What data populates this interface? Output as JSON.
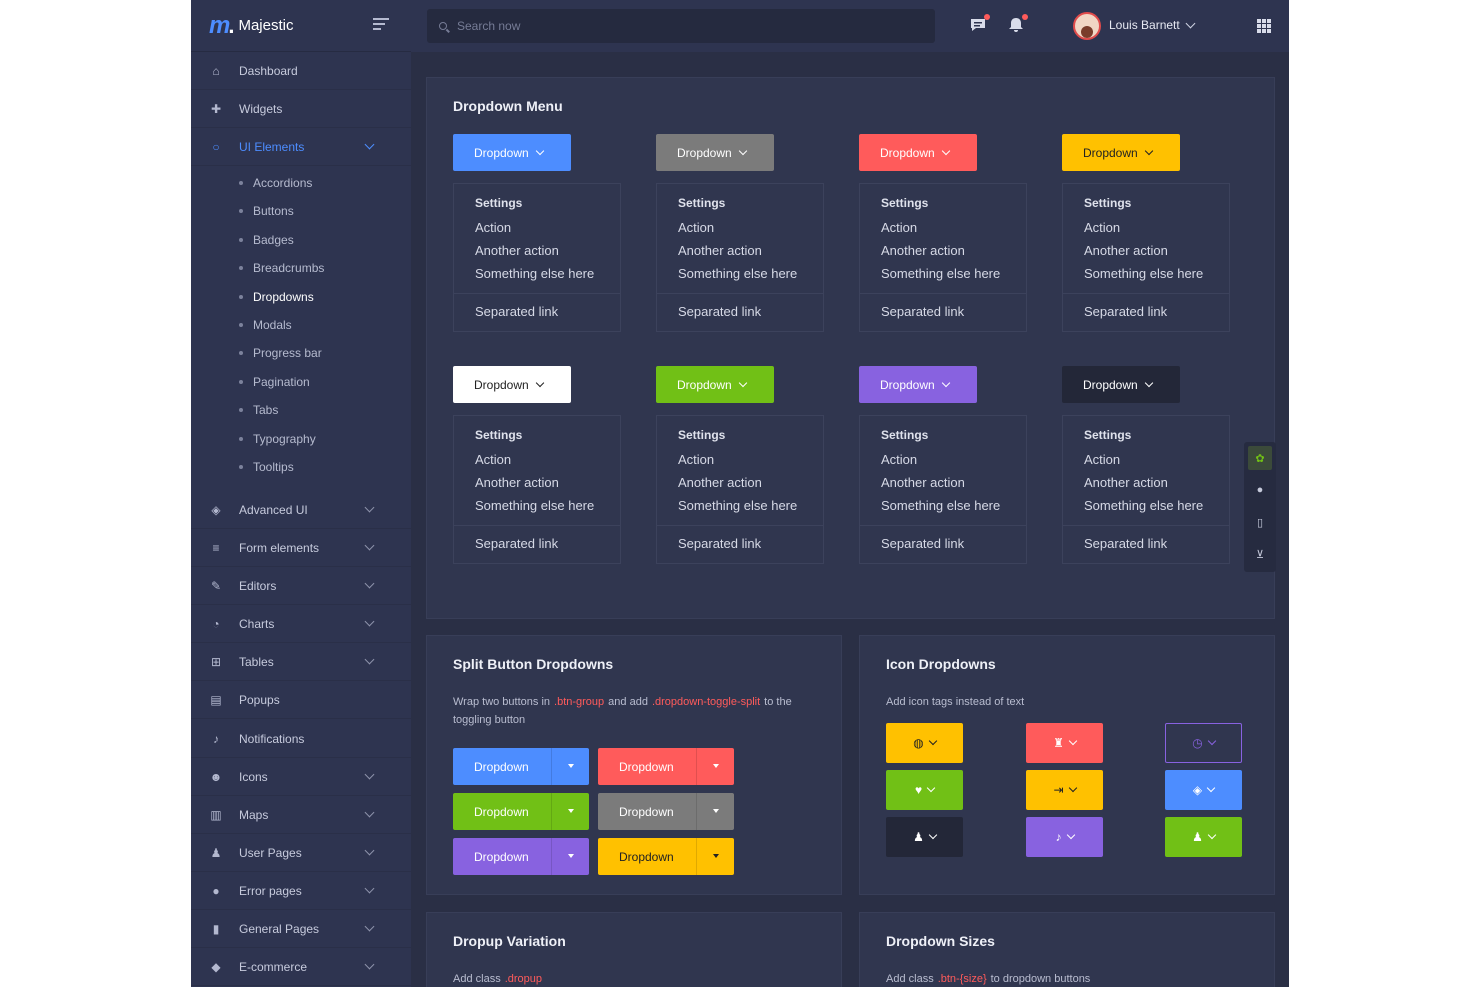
{
  "brand": {
    "logo_mark": "m",
    "logo_dot": ".",
    "name": "Majestic"
  },
  "search": {
    "placeholder": "Search now"
  },
  "user": {
    "name": "Louis Barnett"
  },
  "colors": {
    "primary": "#4d8dff",
    "secondary": "#7b7b7b",
    "danger": "#ff5b5b",
    "warning": "#ffc100",
    "light": "#ffffff",
    "success": "#71c016",
    "info": "#8862e0",
    "dark": "#232738"
  },
  "sidebar": {
    "items": [
      {
        "label": "Dashboard",
        "icon": "home-icon",
        "glyph": "⌂"
      },
      {
        "label": "Widgets",
        "icon": "puzzle-icon",
        "glyph": "✚"
      },
      {
        "label": "UI Elements",
        "icon": "circle-icon",
        "glyph": "○",
        "active": true
      },
      {
        "label": "Advanced UI",
        "icon": "layers-icon",
        "glyph": "◈"
      },
      {
        "label": "Form elements",
        "icon": "list-icon",
        "glyph": "≡"
      },
      {
        "label": "Editors",
        "icon": "edit-icon",
        "glyph": "✎"
      },
      {
        "label": "Charts",
        "icon": "pie-chart-icon",
        "glyph": "◔"
      },
      {
        "label": "Tables",
        "icon": "table-icon",
        "glyph": "⊞"
      },
      {
        "label": "Popups",
        "icon": "popup-icon",
        "glyph": "▤"
      },
      {
        "label": "Notifications",
        "icon": "bell-icon",
        "glyph": "♪"
      },
      {
        "label": "Icons",
        "icon": "smile-icon",
        "glyph": "☻"
      },
      {
        "label": "Maps",
        "icon": "map-icon",
        "glyph": "▥"
      },
      {
        "label": "User Pages",
        "icon": "user-icon",
        "glyph": "♟"
      },
      {
        "label": "Error pages",
        "icon": "alert-icon",
        "glyph": "●"
      },
      {
        "label": "General Pages",
        "icon": "file-icon",
        "glyph": "▮"
      },
      {
        "label": "E-commerce",
        "icon": "basket-icon",
        "glyph": "◆"
      }
    ],
    "sub_items": [
      "Accordions",
      "Buttons",
      "Badges",
      "Breadcrumbs",
      "Dropdowns",
      "Modals",
      "Progress bar",
      "Pagination",
      "Tabs",
      "Typography",
      "Tooltips"
    ]
  },
  "dropdown_menu": {
    "title": "Dropdown Menu",
    "button_label": "Dropdown",
    "menu": {
      "header": "Settings",
      "items": [
        "Action",
        "Another action",
        "Something else here"
      ],
      "separated": "Separated link"
    }
  },
  "split_card": {
    "title": "Split Button Dropdowns",
    "desc_before": "Wrap two buttons in",
    "code1": ".btn-group",
    "desc_mid": "and add",
    "code2": ".dropdown-toggle-split",
    "desc_after": "to the toggling button",
    "button_label": "Dropdown"
  },
  "icon_card": {
    "title": "Icon Dropdowns",
    "desc": "Add icon tags instead of text"
  },
  "dropup_card": {
    "title": "Dropup Variation",
    "desc": "Add class",
    "code": ".dropup"
  },
  "sizes_card": {
    "title": "Dropdown Sizes",
    "desc_before": "Add class",
    "code": ".btn-{size}",
    "desc_after": "to dropdown buttons"
  }
}
